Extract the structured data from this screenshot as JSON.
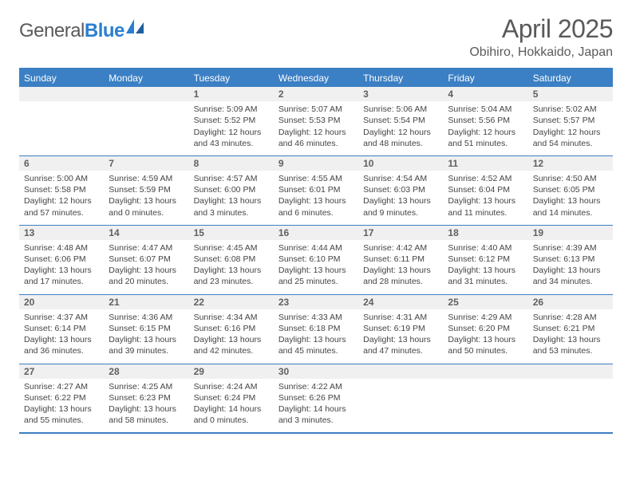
{
  "logo": {
    "part1": "General",
    "part2": "Blue"
  },
  "title": "April 2025",
  "location": "Obihiro, Hokkaido, Japan",
  "weekdays": [
    "Sunday",
    "Monday",
    "Tuesday",
    "Wednesday",
    "Thursday",
    "Friday",
    "Saturday"
  ],
  "colors": {
    "header_bg": "#3b7fc4",
    "header_text": "#ffffff",
    "daynum_bg": "#f0f0f0",
    "border": "#3b7fc4",
    "text": "#444444",
    "title_text": "#5a5a5a"
  },
  "weeks": [
    [
      null,
      null,
      {
        "n": "1",
        "sr": "Sunrise: 5:09 AM",
        "ss": "Sunset: 5:52 PM",
        "dl": "Daylight: 12 hours and 43 minutes."
      },
      {
        "n": "2",
        "sr": "Sunrise: 5:07 AM",
        "ss": "Sunset: 5:53 PM",
        "dl": "Daylight: 12 hours and 46 minutes."
      },
      {
        "n": "3",
        "sr": "Sunrise: 5:06 AM",
        "ss": "Sunset: 5:54 PM",
        "dl": "Daylight: 12 hours and 48 minutes."
      },
      {
        "n": "4",
        "sr": "Sunrise: 5:04 AM",
        "ss": "Sunset: 5:56 PM",
        "dl": "Daylight: 12 hours and 51 minutes."
      },
      {
        "n": "5",
        "sr": "Sunrise: 5:02 AM",
        "ss": "Sunset: 5:57 PM",
        "dl": "Daylight: 12 hours and 54 minutes."
      }
    ],
    [
      {
        "n": "6",
        "sr": "Sunrise: 5:00 AM",
        "ss": "Sunset: 5:58 PM",
        "dl": "Daylight: 12 hours and 57 minutes."
      },
      {
        "n": "7",
        "sr": "Sunrise: 4:59 AM",
        "ss": "Sunset: 5:59 PM",
        "dl": "Daylight: 13 hours and 0 minutes."
      },
      {
        "n": "8",
        "sr": "Sunrise: 4:57 AM",
        "ss": "Sunset: 6:00 PM",
        "dl": "Daylight: 13 hours and 3 minutes."
      },
      {
        "n": "9",
        "sr": "Sunrise: 4:55 AM",
        "ss": "Sunset: 6:01 PM",
        "dl": "Daylight: 13 hours and 6 minutes."
      },
      {
        "n": "10",
        "sr": "Sunrise: 4:54 AM",
        "ss": "Sunset: 6:03 PM",
        "dl": "Daylight: 13 hours and 9 minutes."
      },
      {
        "n": "11",
        "sr": "Sunrise: 4:52 AM",
        "ss": "Sunset: 6:04 PM",
        "dl": "Daylight: 13 hours and 11 minutes."
      },
      {
        "n": "12",
        "sr": "Sunrise: 4:50 AM",
        "ss": "Sunset: 6:05 PM",
        "dl": "Daylight: 13 hours and 14 minutes."
      }
    ],
    [
      {
        "n": "13",
        "sr": "Sunrise: 4:48 AM",
        "ss": "Sunset: 6:06 PM",
        "dl": "Daylight: 13 hours and 17 minutes."
      },
      {
        "n": "14",
        "sr": "Sunrise: 4:47 AM",
        "ss": "Sunset: 6:07 PM",
        "dl": "Daylight: 13 hours and 20 minutes."
      },
      {
        "n": "15",
        "sr": "Sunrise: 4:45 AM",
        "ss": "Sunset: 6:08 PM",
        "dl": "Daylight: 13 hours and 23 minutes."
      },
      {
        "n": "16",
        "sr": "Sunrise: 4:44 AM",
        "ss": "Sunset: 6:10 PM",
        "dl": "Daylight: 13 hours and 25 minutes."
      },
      {
        "n": "17",
        "sr": "Sunrise: 4:42 AM",
        "ss": "Sunset: 6:11 PM",
        "dl": "Daylight: 13 hours and 28 minutes."
      },
      {
        "n": "18",
        "sr": "Sunrise: 4:40 AM",
        "ss": "Sunset: 6:12 PM",
        "dl": "Daylight: 13 hours and 31 minutes."
      },
      {
        "n": "19",
        "sr": "Sunrise: 4:39 AM",
        "ss": "Sunset: 6:13 PM",
        "dl": "Daylight: 13 hours and 34 minutes."
      }
    ],
    [
      {
        "n": "20",
        "sr": "Sunrise: 4:37 AM",
        "ss": "Sunset: 6:14 PM",
        "dl": "Daylight: 13 hours and 36 minutes."
      },
      {
        "n": "21",
        "sr": "Sunrise: 4:36 AM",
        "ss": "Sunset: 6:15 PM",
        "dl": "Daylight: 13 hours and 39 minutes."
      },
      {
        "n": "22",
        "sr": "Sunrise: 4:34 AM",
        "ss": "Sunset: 6:16 PM",
        "dl": "Daylight: 13 hours and 42 minutes."
      },
      {
        "n": "23",
        "sr": "Sunrise: 4:33 AM",
        "ss": "Sunset: 6:18 PM",
        "dl": "Daylight: 13 hours and 45 minutes."
      },
      {
        "n": "24",
        "sr": "Sunrise: 4:31 AM",
        "ss": "Sunset: 6:19 PM",
        "dl": "Daylight: 13 hours and 47 minutes."
      },
      {
        "n": "25",
        "sr": "Sunrise: 4:29 AM",
        "ss": "Sunset: 6:20 PM",
        "dl": "Daylight: 13 hours and 50 minutes."
      },
      {
        "n": "26",
        "sr": "Sunrise: 4:28 AM",
        "ss": "Sunset: 6:21 PM",
        "dl": "Daylight: 13 hours and 53 minutes."
      }
    ],
    [
      {
        "n": "27",
        "sr": "Sunrise: 4:27 AM",
        "ss": "Sunset: 6:22 PM",
        "dl": "Daylight: 13 hours and 55 minutes."
      },
      {
        "n": "28",
        "sr": "Sunrise: 4:25 AM",
        "ss": "Sunset: 6:23 PM",
        "dl": "Daylight: 13 hours and 58 minutes."
      },
      {
        "n": "29",
        "sr": "Sunrise: 4:24 AM",
        "ss": "Sunset: 6:24 PM",
        "dl": "Daylight: 14 hours and 0 minutes."
      },
      {
        "n": "30",
        "sr": "Sunrise: 4:22 AM",
        "ss": "Sunset: 6:26 PM",
        "dl": "Daylight: 14 hours and 3 minutes."
      },
      null,
      null,
      null
    ]
  ]
}
